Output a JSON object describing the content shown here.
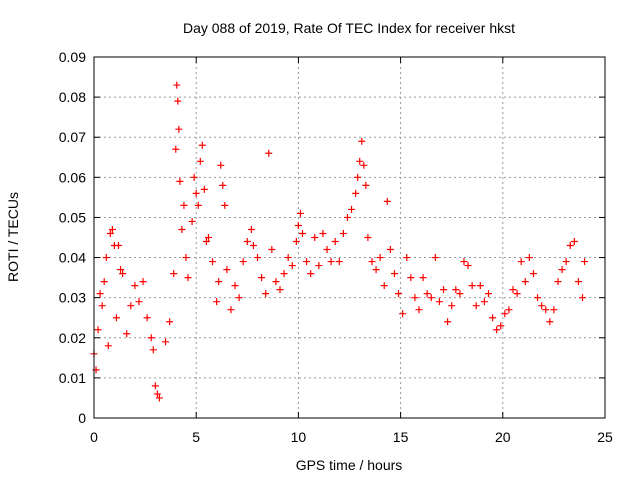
{
  "chart_data": {
    "type": "scatter",
    "title": "Day 088 of 2019, Rate Of TEC Index for receiver hkst",
    "xlabel": "GPS time / hours",
    "ylabel": "ROTI / TECUs",
    "xlim": [
      0,
      25
    ],
    "ylim": [
      0,
      0.09
    ],
    "x_ticks": [
      "0",
      "5",
      "10",
      "15",
      "20",
      "25"
    ],
    "y_ticks": [
      "0",
      "0.01",
      "0.02",
      "0.03",
      "0.04",
      "0.05",
      "0.06",
      "0.07",
      "0.08",
      "0.09"
    ],
    "grid": true,
    "grid_style": "dotted",
    "marker": "+",
    "marker_color": "#ff0000",
    "series": [
      {
        "points": [
          [
            0.0,
            0.016
          ],
          [
            0.1,
            0.012
          ],
          [
            0.2,
            0.022
          ],
          [
            0.3,
            0.031
          ],
          [
            0.4,
            0.028
          ],
          [
            0.5,
            0.034
          ],
          [
            0.6,
            0.04
          ],
          [
            0.7,
            0.018
          ],
          [
            0.8,
            0.046
          ],
          [
            0.9,
            0.047
          ],
          [
            1.0,
            0.043
          ],
          [
            1.1,
            0.025
          ],
          [
            1.2,
            0.043
          ],
          [
            1.3,
            0.037
          ],
          [
            1.4,
            0.036
          ],
          [
            1.6,
            0.021
          ],
          [
            1.8,
            0.028
          ],
          [
            2.0,
            0.033
          ],
          [
            2.2,
            0.029
          ],
          [
            2.4,
            0.034
          ],
          [
            2.6,
            0.025
          ],
          [
            2.8,
            0.02
          ],
          [
            2.9,
            0.017
          ],
          [
            3.0,
            0.008
          ],
          [
            3.1,
            0.006
          ],
          [
            3.2,
            0.005
          ],
          [
            3.5,
            0.019
          ],
          [
            3.7,
            0.024
          ],
          [
            3.9,
            0.036
          ],
          [
            4.0,
            0.067
          ],
          [
            4.05,
            0.083
          ],
          [
            4.1,
            0.079
          ],
          [
            4.15,
            0.072
          ],
          [
            4.2,
            0.059
          ],
          [
            4.3,
            0.047
          ],
          [
            4.4,
            0.053
          ],
          [
            4.5,
            0.04
          ],
          [
            4.6,
            0.035
          ],
          [
            4.8,
            0.049
          ],
          [
            4.9,
            0.06
          ],
          [
            5.0,
            0.056
          ],
          [
            5.1,
            0.053
          ],
          [
            5.2,
            0.064
          ],
          [
            5.3,
            0.068
          ],
          [
            5.4,
            0.057
          ],
          [
            5.5,
            0.044
          ],
          [
            5.6,
            0.045
          ],
          [
            5.8,
            0.039
          ],
          [
            6.0,
            0.029
          ],
          [
            6.1,
            0.034
          ],
          [
            6.2,
            0.063
          ],
          [
            6.3,
            0.058
          ],
          [
            6.4,
            0.053
          ],
          [
            6.5,
            0.037
          ],
          [
            6.7,
            0.027
          ],
          [
            6.9,
            0.033
          ],
          [
            7.1,
            0.03
          ],
          [
            7.3,
            0.039
          ],
          [
            7.5,
            0.044
          ],
          [
            7.7,
            0.047
          ],
          [
            7.8,
            0.043
          ],
          [
            8.0,
            0.04
          ],
          [
            8.2,
            0.035
          ],
          [
            8.4,
            0.031
          ],
          [
            8.55,
            0.066
          ],
          [
            8.7,
            0.042
          ],
          [
            8.9,
            0.034
          ],
          [
            9.1,
            0.032
          ],
          [
            9.3,
            0.036
          ],
          [
            9.5,
            0.04
          ],
          [
            9.7,
            0.038
          ],
          [
            9.9,
            0.044
          ],
          [
            10.0,
            0.048
          ],
          [
            10.1,
            0.051
          ],
          [
            10.2,
            0.046
          ],
          [
            10.4,
            0.039
          ],
          [
            10.6,
            0.036
          ],
          [
            10.8,
            0.045
          ],
          [
            11.0,
            0.038
          ],
          [
            11.2,
            0.046
          ],
          [
            11.4,
            0.042
          ],
          [
            11.6,
            0.039
          ],
          [
            11.8,
            0.044
          ],
          [
            12.0,
            0.039
          ],
          [
            12.2,
            0.046
          ],
          [
            12.4,
            0.05
          ],
          [
            12.6,
            0.052
          ],
          [
            12.8,
            0.056
          ],
          [
            12.9,
            0.06
          ],
          [
            13.0,
            0.064
          ],
          [
            13.1,
            0.069
          ],
          [
            13.2,
            0.063
          ],
          [
            13.3,
            0.058
          ],
          [
            13.4,
            0.045
          ],
          [
            13.6,
            0.039
          ],
          [
            13.8,
            0.037
          ],
          [
            14.0,
            0.04
          ],
          [
            14.2,
            0.033
          ],
          [
            14.35,
            0.054
          ],
          [
            14.5,
            0.042
          ],
          [
            14.7,
            0.036
          ],
          [
            14.9,
            0.031
          ],
          [
            15.1,
            0.026
          ],
          [
            15.3,
            0.04
          ],
          [
            15.5,
            0.035
          ],
          [
            15.7,
            0.03
          ],
          [
            15.9,
            0.027
          ],
          [
            16.1,
            0.035
          ],
          [
            16.3,
            0.031
          ],
          [
            16.5,
            0.03
          ],
          [
            16.7,
            0.04
          ],
          [
            16.9,
            0.029
          ],
          [
            17.1,
            0.032
          ],
          [
            17.3,
            0.024
          ],
          [
            17.5,
            0.028
          ],
          [
            17.7,
            0.032
          ],
          [
            17.9,
            0.031
          ],
          [
            18.1,
            0.039
          ],
          [
            18.3,
            0.038
          ],
          [
            18.5,
            0.033
          ],
          [
            18.7,
            0.028
          ],
          [
            18.9,
            0.033
          ],
          [
            19.1,
            0.029
          ],
          [
            19.3,
            0.031
          ],
          [
            19.5,
            0.025
          ],
          [
            19.7,
            0.022
          ],
          [
            19.9,
            0.023
          ],
          [
            20.1,
            0.026
          ],
          [
            20.3,
            0.027
          ],
          [
            20.5,
            0.032
          ],
          [
            20.7,
            0.031
          ],
          [
            20.9,
            0.039
          ],
          [
            21.1,
            0.034
          ],
          [
            21.3,
            0.04
          ],
          [
            21.5,
            0.036
          ],
          [
            21.7,
            0.03
          ],
          [
            21.9,
            0.028
          ],
          [
            22.1,
            0.027
          ],
          [
            22.3,
            0.024
          ],
          [
            22.5,
            0.027
          ],
          [
            22.7,
            0.034
          ],
          [
            22.9,
            0.037
          ],
          [
            23.1,
            0.039
          ],
          [
            23.3,
            0.043
          ],
          [
            23.5,
            0.044
          ],
          [
            23.7,
            0.034
          ],
          [
            23.9,
            0.03
          ],
          [
            24.0,
            0.039
          ]
        ]
      }
    ]
  }
}
